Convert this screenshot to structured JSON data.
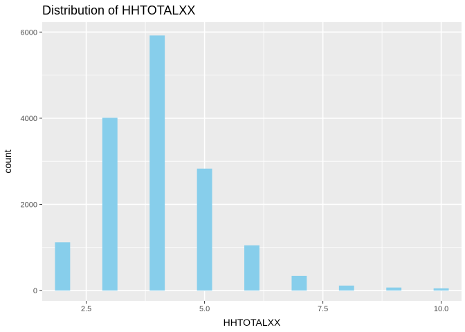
{
  "chart_data": {
    "type": "bar",
    "title": "Distribution of HHTOTALXX",
    "xlabel": "HHTOTALXX",
    "ylabel": "count",
    "x": [
      2,
      3,
      4,
      5,
      6,
      7,
      8,
      9,
      10
    ],
    "values": [
      1120,
      4010,
      5920,
      2830,
      1050,
      340,
      115,
      70,
      50
    ],
    "xlim": [
      1.57,
      10.43
    ],
    "ylim": [
      -240,
      6230
    ],
    "xticks": [
      2.5,
      5.0,
      7.5,
      10.0
    ],
    "xtick_labels": [
      "2.5",
      "5.0",
      "7.5",
      "10.0"
    ],
    "yticks": [
      0,
      2000,
      4000,
      6000
    ],
    "ytick_labels": [
      "0",
      "2000",
      "4000",
      "6000"
    ],
    "bar_color": "#87CEEB",
    "panel_background": "#EBEBEB",
    "grid_color": "#FFFFFF",
    "grid": true
  }
}
